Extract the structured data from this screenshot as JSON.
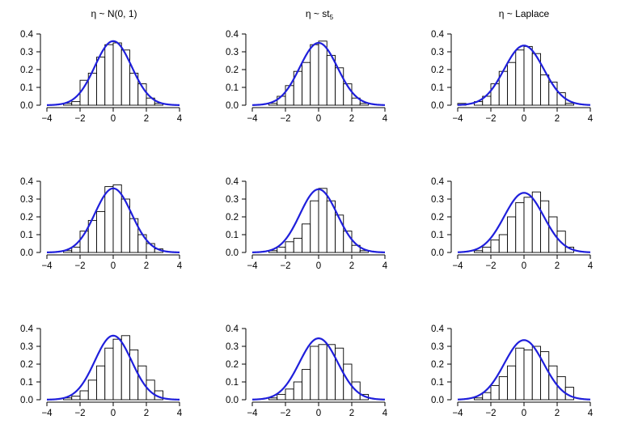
{
  "figure": {
    "column_titles": [
      {
        "prefix": "η ~ N(0, 1)",
        "subscript": ""
      },
      {
        "prefix": "η ~ st",
        "subscript": "5"
      },
      {
        "prefix": "η ~ Laplace",
        "subscript": ""
      }
    ]
  },
  "colors": {
    "curve": "#1f1fdb",
    "bar_edge": "#000000",
    "bar_fill": "#ffffff"
  },
  "chart_data": [
    {
      "type": "bar",
      "title": "η ~ N(0, 1)",
      "row": 1,
      "col": 1,
      "x": [
        -2.75,
        -2.25,
        -1.75,
        -1.25,
        -0.75,
        -0.25,
        0.25,
        0.75,
        1.25,
        1.75,
        2.25,
        2.75
      ],
      "values": [
        0.01,
        0.02,
        0.14,
        0.18,
        0.27,
        0.34,
        0.35,
        0.31,
        0.18,
        0.12,
        0.04,
        0.01
      ],
      "curve": "normal",
      "curve_peak": 0.36,
      "xlim": [
        -4,
        4
      ],
      "ylim": [
        0,
        0.4
      ],
      "xticks": [
        -4,
        -2,
        0,
        2,
        4
      ],
      "yticks": [
        0.0,
        0.1,
        0.2,
        0.3,
        0.4
      ],
      "xtick_labels": [
        "−4",
        "−2",
        "0",
        "2",
        "4"
      ],
      "ytick_labels": [
        "0.0",
        "0.1",
        "0.2",
        "0.3",
        "0.4"
      ]
    },
    {
      "type": "bar",
      "title": "η ~ st5",
      "row": 1,
      "col": 2,
      "x": [
        -2.75,
        -2.25,
        -1.75,
        -1.25,
        -0.75,
        -0.25,
        0.25,
        0.75,
        1.25,
        1.75,
        2.25,
        2.75
      ],
      "values": [
        0.01,
        0.05,
        0.11,
        0.19,
        0.24,
        0.34,
        0.36,
        0.28,
        0.21,
        0.12,
        0.04,
        0.01
      ],
      "curve": "normal",
      "curve_peak": 0.35,
      "xlim": [
        -4,
        4
      ],
      "ylim": [
        0,
        0.4
      ],
      "xticks": [
        -4,
        -2,
        0,
        2,
        4
      ],
      "yticks": [
        0.0,
        0.1,
        0.2,
        0.3,
        0.4
      ],
      "xtick_labels": [
        "−4",
        "−2",
        "0",
        "2",
        "4"
      ],
      "ytick_labels": [
        "0.0",
        "0.1",
        "0.2",
        "0.3",
        "0.4"
      ]
    },
    {
      "type": "bar",
      "title": "η ~ Laplace",
      "row": 1,
      "col": 3,
      "x": [
        -3.75,
        -2.75,
        -2.25,
        -1.75,
        -1.25,
        -0.75,
        -0.25,
        0.25,
        0.75,
        1.25,
        1.75,
        2.25,
        2.75
      ],
      "values": [
        0.01,
        0.02,
        0.05,
        0.12,
        0.19,
        0.24,
        0.31,
        0.33,
        0.29,
        0.17,
        0.13,
        0.07,
        0.01
      ],
      "curve": "normal",
      "curve_peak": 0.335,
      "xlim": [
        -4,
        4
      ],
      "ylim": [
        0,
        0.4
      ],
      "xticks": [
        -4,
        -2,
        0,
        2,
        4
      ],
      "yticks": [
        0.0,
        0.1,
        0.2,
        0.3,
        0.4
      ],
      "xtick_labels": [
        "−4",
        "−2",
        "0",
        "2",
        "4"
      ],
      "ytick_labels": [
        "0.0",
        "0.1",
        "0.2",
        "0.3",
        "0.4"
      ]
    },
    {
      "type": "bar",
      "title": "",
      "row": 2,
      "col": 1,
      "x": [
        -2.75,
        -2.25,
        -1.75,
        -1.25,
        -0.75,
        -0.25,
        0.25,
        0.75,
        1.25,
        1.75,
        2.25,
        2.75
      ],
      "values": [
        0.01,
        0.03,
        0.12,
        0.18,
        0.23,
        0.37,
        0.38,
        0.3,
        0.19,
        0.1,
        0.05,
        0.02
      ],
      "curve": "normal",
      "curve_peak": 0.36,
      "xlim": [
        -4,
        4
      ],
      "ylim": [
        0,
        0.4
      ],
      "xticks": [
        -4,
        -2,
        0,
        2,
        4
      ],
      "yticks": [
        0.0,
        0.1,
        0.2,
        0.3,
        0.4
      ],
      "xtick_labels": [
        "−4",
        "−2",
        "0",
        "2",
        "4"
      ],
      "ytick_labels": [
        "0.0",
        "0.1",
        "0.2",
        "0.3",
        "0.4"
      ]
    },
    {
      "type": "bar",
      "title": "",
      "row": 2,
      "col": 2,
      "x": [
        -2.75,
        -2.25,
        -1.75,
        -1.25,
        -0.75,
        -0.25,
        0.25,
        0.75,
        1.25,
        1.75,
        2.25,
        2.75
      ],
      "values": [
        0.01,
        0.03,
        0.06,
        0.08,
        0.16,
        0.29,
        0.36,
        0.29,
        0.21,
        0.12,
        0.04,
        0.01
      ],
      "curve": "normal",
      "curve_peak": 0.355,
      "xlim": [
        -4,
        4
      ],
      "ylim": [
        0,
        0.4
      ],
      "xticks": [
        -4,
        -2,
        0,
        2,
        4
      ],
      "yticks": [
        0.0,
        0.1,
        0.2,
        0.3,
        0.4
      ],
      "xtick_labels": [
        "−4",
        "−2",
        "0",
        "2",
        "4"
      ],
      "ytick_labels": [
        "0.0",
        "0.1",
        "0.2",
        "0.3",
        "0.4"
      ]
    },
    {
      "type": "bar",
      "title": "",
      "row": 2,
      "col": 3,
      "x": [
        -2.75,
        -2.25,
        -1.75,
        -1.25,
        -0.75,
        -0.25,
        0.25,
        0.75,
        1.25,
        1.75,
        2.25,
        2.75
      ],
      "values": [
        0.01,
        0.03,
        0.07,
        0.1,
        0.2,
        0.28,
        0.31,
        0.34,
        0.29,
        0.2,
        0.12,
        0.03
      ],
      "curve": "normal",
      "curve_peak": 0.335,
      "xlim": [
        -4,
        4
      ],
      "ylim": [
        0,
        0.4
      ],
      "xticks": [
        -4,
        -2,
        0,
        2,
        4
      ],
      "yticks": [
        0.0,
        0.1,
        0.2,
        0.3,
        0.4
      ],
      "xtick_labels": [
        "−4",
        "−2",
        "0",
        "2",
        "4"
      ],
      "ytick_labels": [
        "0.0",
        "0.1",
        "0.2",
        "0.3",
        "0.4"
      ]
    },
    {
      "type": "bar",
      "title": "",
      "row": 3,
      "col": 1,
      "x": [
        -2.75,
        -2.25,
        -1.75,
        -1.25,
        -0.75,
        -0.25,
        0.25,
        0.75,
        1.25,
        1.75,
        2.25,
        2.75
      ],
      "values": [
        0.01,
        0.02,
        0.05,
        0.11,
        0.19,
        0.29,
        0.34,
        0.36,
        0.28,
        0.19,
        0.11,
        0.05
      ],
      "curve": "normal",
      "curve_peak": 0.36,
      "xlim": [
        -4,
        4
      ],
      "ylim": [
        0,
        0.4
      ],
      "xticks": [
        -4,
        -2,
        0,
        2,
        4
      ],
      "yticks": [
        0.0,
        0.1,
        0.2,
        0.3,
        0.4
      ],
      "xtick_labels": [
        "−4",
        "−2",
        "0",
        "2",
        "4"
      ],
      "ytick_labels": [
        "0.0",
        "0.1",
        "0.2",
        "0.3",
        "0.4"
      ]
    },
    {
      "type": "bar",
      "title": "",
      "row": 3,
      "col": 2,
      "x": [
        -2.75,
        -2.25,
        -1.75,
        -1.25,
        -0.75,
        -0.25,
        0.25,
        0.75,
        1.25,
        1.75,
        2.25,
        2.75
      ],
      "values": [
        0.01,
        0.03,
        0.06,
        0.1,
        0.17,
        0.3,
        0.31,
        0.31,
        0.29,
        0.2,
        0.1,
        0.03
      ],
      "curve": "normal",
      "curve_peak": 0.345,
      "xlim": [
        -4,
        4
      ],
      "ylim": [
        0,
        0.4
      ],
      "xticks": [
        -4,
        -2,
        0,
        2,
        4
      ],
      "yticks": [
        0.0,
        0.1,
        0.2,
        0.3,
        0.4
      ],
      "xtick_labels": [
        "−4",
        "−2",
        "0",
        "2",
        "4"
      ],
      "ytick_labels": [
        "0.0",
        "0.1",
        "0.2",
        "0.3",
        "0.4"
      ]
    },
    {
      "type": "bar",
      "title": "",
      "row": 3,
      "col": 3,
      "x": [
        -2.75,
        -2.25,
        -1.75,
        -1.25,
        -0.75,
        -0.25,
        0.25,
        0.75,
        1.25,
        1.75,
        2.25,
        2.75
      ],
      "values": [
        0.01,
        0.04,
        0.08,
        0.13,
        0.19,
        0.29,
        0.28,
        0.3,
        0.27,
        0.19,
        0.13,
        0.07
      ],
      "curve": "normal",
      "curve_peak": 0.335,
      "xlim": [
        -4,
        4
      ],
      "ylim": [
        0,
        0.4
      ],
      "xticks": [
        -4,
        -2,
        0,
        2,
        4
      ],
      "yticks": [
        0.0,
        0.1,
        0.2,
        0.3,
        0.4
      ],
      "xtick_labels": [
        "−4",
        "−2",
        "0",
        "2",
        "4"
      ],
      "ytick_labels": [
        "0.0",
        "0.1",
        "0.2",
        "0.3",
        "0.4"
      ]
    }
  ]
}
